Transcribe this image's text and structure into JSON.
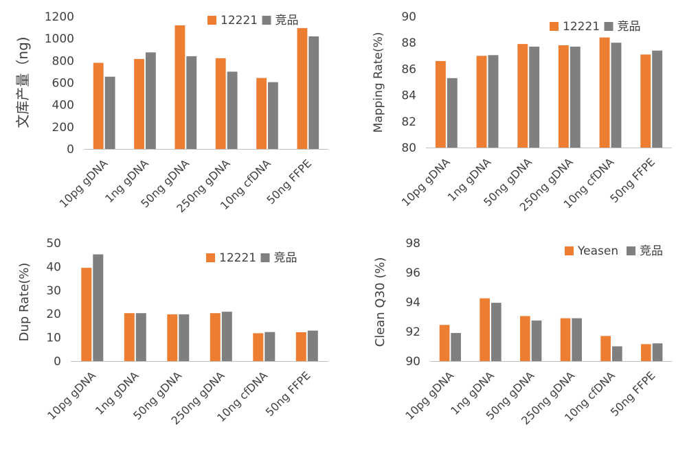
{
  "chart_data": [
    {
      "type": "bar",
      "categories": [
        "10pg gDNA",
        "1ng gDNA",
        "50ng gDNA",
        "250ng gDNA",
        "10ng cfDNA",
        "50ng FFPE"
      ],
      "ylabel": "文库产量（ng)",
      "ylim": [
        0,
        1200
      ],
      "yticks": [
        0,
        200,
        400,
        600,
        800,
        1000,
        1200
      ],
      "grid": false,
      "legend_position": "top-right",
      "series": [
        {
          "name": "12221",
          "color": "#ED7D31",
          "values": [
            780,
            815,
            1120,
            822,
            643,
            1095
          ]
        },
        {
          "name": "竞品",
          "color": "#7F7F7F",
          "values": [
            655,
            875,
            840,
            700,
            605,
            1020
          ]
        }
      ]
    },
    {
      "type": "bar",
      "categories": [
        "10pg gDNA",
        "1ng gDNA",
        "50ng gDNA",
        "250ng gDNA",
        "10ng cfDNA",
        "50ng FFPE"
      ],
      "ylabel": "Mapping Rate(%)",
      "ylim": [
        80,
        90
      ],
      "yticks": [
        80,
        82,
        84,
        86,
        88,
        90
      ],
      "grid": false,
      "legend_position": "top-right",
      "series": [
        {
          "name": "12221",
          "color": "#ED7D31",
          "values": [
            86.6,
            87.0,
            87.9,
            87.8,
            88.4,
            87.1
          ]
        },
        {
          "name": "竞品",
          "color": "#7F7F7F",
          "values": [
            85.3,
            87.05,
            87.7,
            87.7,
            88.0,
            87.4
          ]
        }
      ]
    },
    {
      "type": "bar",
      "categories": [
        "10pg gDNA",
        "1ng gDNA",
        "50ng gDNA",
        "250ng gDNA",
        "10ng cfDNA",
        "50ng FFPE"
      ],
      "ylabel": "Dup Rate(%)",
      "ylim": [
        0,
        50
      ],
      "yticks": [
        0,
        10,
        20,
        30,
        40,
        50
      ],
      "grid": false,
      "legend_position": "top-right",
      "series": [
        {
          "name": "12221",
          "color": "#ED7D31",
          "values": [
            39.5,
            20.3,
            19.8,
            20.3,
            11.8,
            12.2
          ]
        },
        {
          "name": "竞品",
          "color": "#7F7F7F",
          "values": [
            45.2,
            20.3,
            19.8,
            20.9,
            12.3,
            12.9
          ]
        }
      ]
    },
    {
      "type": "bar",
      "categories": [
        "10pg gDNA",
        "1ng gDNA",
        "50ng gDNA",
        "250ng gDNA",
        "10ng cfDNA",
        "50ng FFPE"
      ],
      "ylabel": "Clean Q30 (%)",
      "ylim": [
        90,
        98
      ],
      "yticks": [
        90,
        92,
        94,
        96,
        98
      ],
      "grid": false,
      "legend_position": "top-right",
      "series": [
        {
          "name": "Yeasen",
          "color": "#ED7D31",
          "values": [
            92.45,
            94.25,
            93.05,
            92.9,
            91.7,
            91.15
          ]
        },
        {
          "name": "竞品",
          "color": "#7F7F7F",
          "values": [
            91.9,
            93.95,
            92.75,
            92.9,
            91.0,
            91.2
          ]
        }
      ]
    }
  ]
}
